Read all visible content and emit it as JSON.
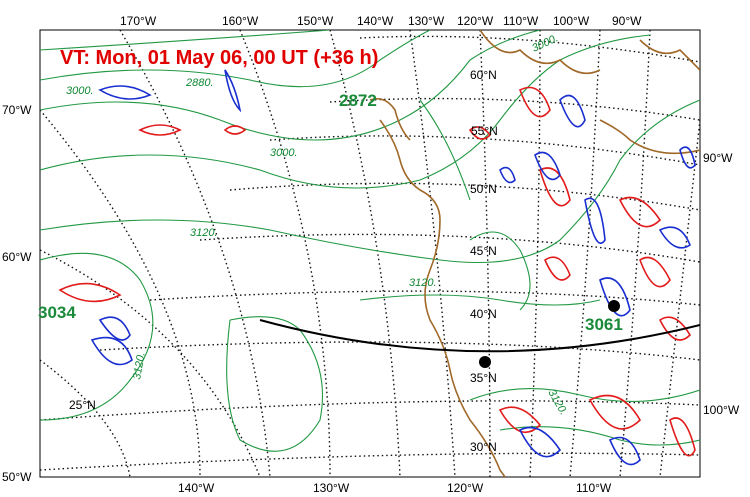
{
  "title": "VT:  Mon, 01 May 06, 00 UT (+36 h)",
  "top_lon_labels": [
    "170°W",
    "160°W",
    "150°W",
    "140°W",
    "130°W",
    "120°W",
    "110°W",
    "100°W",
    "90°W"
  ],
  "bottom_lon_labels": [
    "140°W",
    "130°W",
    "120°W",
    "110°W"
  ],
  "left_labels": [
    "70°W",
    "60°W",
    "50°W"
  ],
  "right_labels": [
    "90°W",
    "100°W"
  ],
  "lat_labels": [
    "60°N",
    "55°N",
    "50°N",
    "45°N",
    "40°N",
    "35°N",
    "30°N",
    "25°N"
  ],
  "height_contour_labels": [
    "3000.",
    "2880.",
    "3000.",
    "3120.",
    "3120.",
    "3120.",
    "3120.",
    "3000."
  ],
  "center_values": [
    "2872",
    "3034",
    "3061"
  ],
  "colors": {
    "title": "#e00000",
    "height_contours": "#229944",
    "red_contours": "#e21b1b",
    "blue_contours": "#1a2fd0",
    "coastline": "#a0692a"
  }
}
